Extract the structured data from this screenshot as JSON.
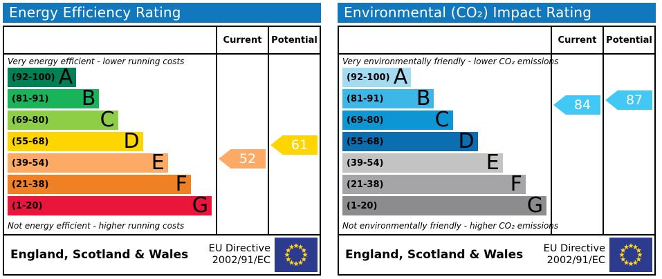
{
  "colors": {
    "header_bar": "#1278bd",
    "border": "#000000",
    "eu_flag_bg": "#2d3b8e",
    "eu_flag_star": "#ffd617"
  },
  "panels": [
    {
      "title": "Energy Efficiency Rating",
      "columns": {
        "current_label": "Current",
        "potential_label": "Potential"
      },
      "top_caption": "Very energy efficient - lower running costs",
      "bottom_caption": "Not energy efficient - higher running costs",
      "bands": [
        {
          "letter": "A",
          "range": "(92-100)",
          "min": 92,
          "max": 100,
          "color": "#008054",
          "width_pct": 33
        },
        {
          "letter": "B",
          "range": "(81-91)",
          "min": 81,
          "max": 91,
          "color": "#19b459",
          "width_pct": 44
        },
        {
          "letter": "C",
          "range": "(69-80)",
          "min": 69,
          "max": 80,
          "color": "#8dce46",
          "width_pct": 53
        },
        {
          "letter": "D",
          "range": "(55-68)",
          "min": 55,
          "max": 68,
          "color": "#ffd500",
          "width_pct": 65
        },
        {
          "letter": "E",
          "range": "(39-54)",
          "min": 39,
          "max": 54,
          "color": "#fcaa65",
          "width_pct": 77
        },
        {
          "letter": "F",
          "range": "(21-38)",
          "min": 21,
          "max": 38,
          "color": "#ef8023",
          "width_pct": 88
        },
        {
          "letter": "G",
          "range": "(1-20)",
          "min": 1,
          "max": 20,
          "color": "#e9153b",
          "width_pct": 98
        }
      ],
      "arrows": {
        "current": {
          "value": "52",
          "color": "#fcaa65"
        },
        "potential": {
          "value": "61",
          "color": "#ffd500"
        }
      },
      "footer": {
        "region": "England, Scotland & Wales",
        "directive_line1": "EU Directive",
        "directive_line2": "2002/91/EC"
      }
    },
    {
      "title": "Environmental (CO₂) Impact Rating",
      "columns": {
        "current_label": "Current",
        "potential_label": "Potential"
      },
      "top_caption": "Very environmentally friendly - lower CO₂ emissions",
      "bottom_caption": "Not environmentally friendly - higher CO₂ emissions",
      "bands": [
        {
          "letter": "A",
          "range": "(92-100)",
          "min": 92,
          "max": 100,
          "color": "#a5dbf0",
          "width_pct": 33
        },
        {
          "letter": "B",
          "range": "(81-91)",
          "min": 81,
          "max": 91,
          "color": "#3db6e8",
          "width_pct": 44
        },
        {
          "letter": "C",
          "range": "(69-80)",
          "min": 69,
          "max": 80,
          "color": "#0d96d3",
          "width_pct": 53
        },
        {
          "letter": "D",
          "range": "(55-68)",
          "min": 55,
          "max": 68,
          "color": "#0b6eb1",
          "width_pct": 65
        },
        {
          "letter": "E",
          "range": "(39-54)",
          "min": 39,
          "max": 54,
          "color": "#c3c3c3",
          "width_pct": 77
        },
        {
          "letter": "F",
          "range": "(21-38)",
          "min": 21,
          "max": 38,
          "color": "#a5a5a8",
          "width_pct": 88
        },
        {
          "letter": "G",
          "range": "(1-20)",
          "min": 1,
          "max": 20,
          "color": "#8c8c8e",
          "width_pct": 98
        }
      ],
      "arrows": {
        "current": {
          "value": "84",
          "color": "#42c8f4"
        },
        "potential": {
          "value": "87",
          "color": "#42c8f4"
        }
      },
      "footer": {
        "region": "England, Scotland & Wales",
        "directive_line1": "EU Directive",
        "directive_line2": "2002/91/EC"
      }
    }
  ],
  "chart_data": [
    {
      "type": "bar",
      "title": "Energy Efficiency Rating",
      "categories": [
        "A (92-100)",
        "B (81-91)",
        "C (69-80)",
        "D (55-68)",
        "E (39-54)",
        "F (21-38)",
        "G (1-20)"
      ],
      "current": 52,
      "current_band": "E",
      "potential": 61,
      "potential_band": "D",
      "top_caption": "Very energy efficient - lower running costs",
      "bottom_caption": "Not energy efficient - higher running costs",
      "footnote": "England, Scotland & Wales — EU Directive 2002/91/EC"
    },
    {
      "type": "bar",
      "title": "Environmental (CO₂) Impact Rating",
      "categories": [
        "A (92-100)",
        "B (81-91)",
        "C (69-80)",
        "D (55-68)",
        "E (39-54)",
        "F (21-38)",
        "G (1-20)"
      ],
      "current": 84,
      "current_band": "B",
      "potential": 87,
      "potential_band": "B",
      "top_caption": "Very environmentally friendly - lower CO₂ emissions",
      "bottom_caption": "Not environmentally friendly - higher CO₂ emissions",
      "footnote": "England, Scotland & Wales — EU Directive 2002/91/EC"
    }
  ]
}
